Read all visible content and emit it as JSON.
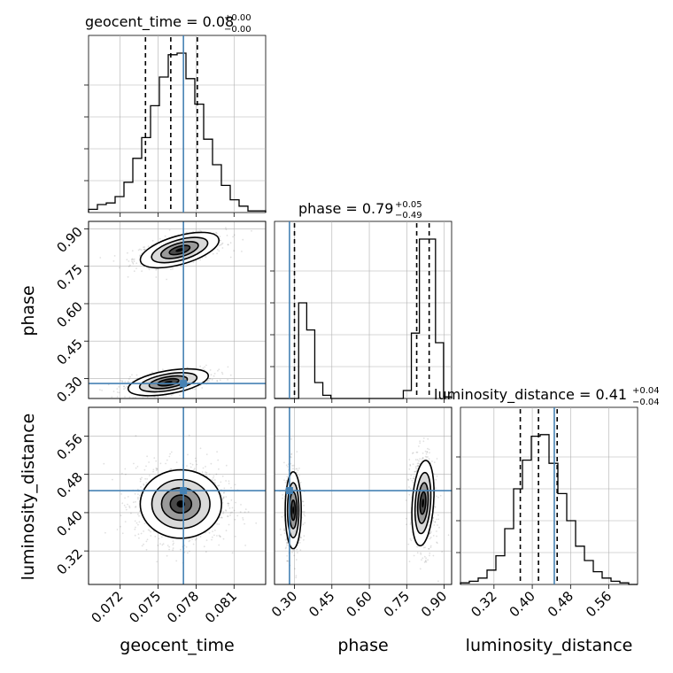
{
  "colors": {
    "truth": "#4682b4",
    "hist": "#000000",
    "grid": "#b0b0b0",
    "scatter": "#000000"
  },
  "chart_data": {
    "type": "corner",
    "parameters": [
      {
        "key": "geocent_time",
        "label": "geocent_time",
        "title": "geocent_time = 0.08",
        "title_sup": "+0.00",
        "title_sub": "−0.00",
        "range": [
          0.0695,
          0.0835
        ],
        "ticks": [
          0.072,
          0.075,
          0.078,
          0.081
        ],
        "tick_labels": [
          "0.072",
          "0.075",
          "0.078",
          "0.081"
        ],
        "truth": 0.077,
        "quantiles": [
          0.074,
          0.076,
          0.0781
        ]
      },
      {
        "key": "phase",
        "label": "phase",
        "title": "phase = 0.79",
        "title_sup": "+0.05",
        "title_sub": "−0.49",
        "range": [
          0.22,
          0.93
        ],
        "ticks": [
          0.3,
          0.45,
          0.6,
          0.75,
          0.9
        ],
        "tick_labels": [
          "0.30",
          "0.45",
          "0.60",
          "0.75",
          "0.90"
        ],
        "truth": 0.28,
        "quantiles": [
          0.3,
          0.79,
          0.84
        ]
      },
      {
        "key": "luminosity_distance",
        "label": "luminosity_distance",
        "title": "luminosity_distance = 0.41",
        "title_sup": "+0.04",
        "title_sub": "−0.04",
        "range": [
          0.25,
          0.62
        ],
        "ticks": [
          0.32,
          0.4,
          0.48,
          0.56
        ],
        "tick_labels": [
          "0.32",
          "0.40",
          "0.48",
          "0.56"
        ],
        "truth": 0.446,
        "quantiles": [
          0.375,
          0.413,
          0.452
        ]
      }
    ],
    "histograms": {
      "geocent_time": [
        0.02,
        0.05,
        0.06,
        0.1,
        0.19,
        0.34,
        0.47,
        0.67,
        0.85,
        0.99,
        1.0,
        0.84,
        0.68,
        0.46,
        0.3,
        0.17,
        0.08,
        0.04,
        0.01,
        0.01
      ],
      "phase": [
        0.0,
        0.0,
        0.0,
        0.6,
        0.43,
        0.1,
        0.02,
        0.0,
        0.0,
        0.0,
        0.0,
        0.0,
        0.0,
        0.0,
        0.0,
        0.0,
        0.05,
        0.41,
        1.0,
        1.0,
        0.35,
        0.01
      ],
      "luminosity_distance": [
        0.01,
        0.02,
        0.04,
        0.09,
        0.18,
        0.35,
        0.6,
        0.78,
        0.93,
        0.94,
        0.76,
        0.57,
        0.4,
        0.24,
        0.15,
        0.08,
        0.04,
        0.02,
        0.01,
        0.0
      ]
    },
    "grid": true
  }
}
